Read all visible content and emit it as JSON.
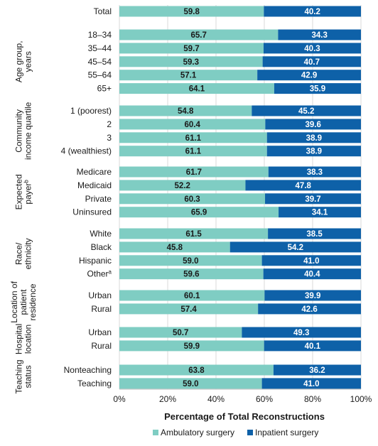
{
  "chart_data": {
    "type": "bar",
    "orientation": "horizontal",
    "stacked": true,
    "xlabel": "Percentage of Total Reconstructions",
    "xlim": [
      0,
      100
    ],
    "xticks": [
      "0%",
      "20%",
      "40%",
      "60%",
      "80%",
      "100%"
    ],
    "legend_placement": "bottom",
    "series": [
      {
        "name": "Ambulatory surgery",
        "color": "#7fcdc3",
        "value_color": "#1a1a1a"
      },
      {
        "name": "Inpatient surgery",
        "color": "#0e61a8",
        "value_color": "#ffffff"
      }
    ],
    "groups": [
      {
        "label": [],
        "rows": [
          {
            "label": "Total",
            "values": [
              59.8,
              40.2
            ]
          }
        ]
      },
      {
        "label": [
          "Age group,",
          "years"
        ],
        "rows": [
          {
            "label": "18–34",
            "values": [
              65.7,
              34.3
            ]
          },
          {
            "label": "35–44",
            "values": [
              59.7,
              40.3
            ]
          },
          {
            "label": "45–54",
            "values": [
              59.3,
              40.7
            ]
          },
          {
            "label": "55–64",
            "values": [
              57.1,
              42.9
            ]
          },
          {
            "label": "65+",
            "values": [
              64.1,
              35.9
            ]
          }
        ]
      },
      {
        "label": [
          "Community",
          "income quartile"
        ],
        "rows": [
          {
            "label": "1 (poorest)",
            "values": [
              54.8,
              45.2
            ]
          },
          {
            "label": "2",
            "values": [
              60.4,
              39.6
            ]
          },
          {
            "label": "3",
            "values": [
              61.1,
              38.9
            ]
          },
          {
            "label": "4 (wealthiest)",
            "values": [
              61.1,
              38.9
            ]
          }
        ]
      },
      {
        "label": [
          "Expected",
          "payer"
        ],
        "label_sup": "b",
        "rows": [
          {
            "label": "Medicare",
            "values": [
              61.7,
              38.3
            ]
          },
          {
            "label": "Medicaid",
            "values": [
              52.2,
              47.8
            ]
          },
          {
            "label": "Private",
            "values": [
              60.3,
              39.7
            ]
          },
          {
            "label": "Uninsured",
            "values": [
              65.9,
              34.1
            ]
          }
        ]
      },
      {
        "label": [
          "Race/",
          "ethnicity"
        ],
        "rows": [
          {
            "label": "White",
            "values": [
              61.5,
              38.5
            ]
          },
          {
            "label": "Black",
            "values": [
              45.8,
              54.2
            ]
          },
          {
            "label": "Hispanic",
            "values": [
              59.0,
              41.0
            ]
          },
          {
            "label": "Other",
            "sup": "a",
            "values": [
              59.6,
              40.4
            ]
          }
        ]
      },
      {
        "label": [
          "Location of",
          "patient",
          "residence"
        ],
        "rows": [
          {
            "label": "Urban",
            "values": [
              60.1,
              39.9
            ]
          },
          {
            "label": "Rural",
            "values": [
              57.4,
              42.6
            ]
          }
        ]
      },
      {
        "label": [
          "Hospital",
          "location"
        ],
        "rows": [
          {
            "label": "Urban",
            "values": [
              50.7,
              49.3
            ]
          },
          {
            "label": "Rural",
            "values": [
              59.9,
              40.1
            ]
          }
        ]
      },
      {
        "label": [
          "Teaching",
          "status"
        ],
        "rows": [
          {
            "label": "Nonteaching",
            "values": [
              63.8,
              36.2
            ]
          },
          {
            "label": "Teaching",
            "values": [
              59.0,
              41.0
            ]
          }
        ]
      }
    ]
  }
}
